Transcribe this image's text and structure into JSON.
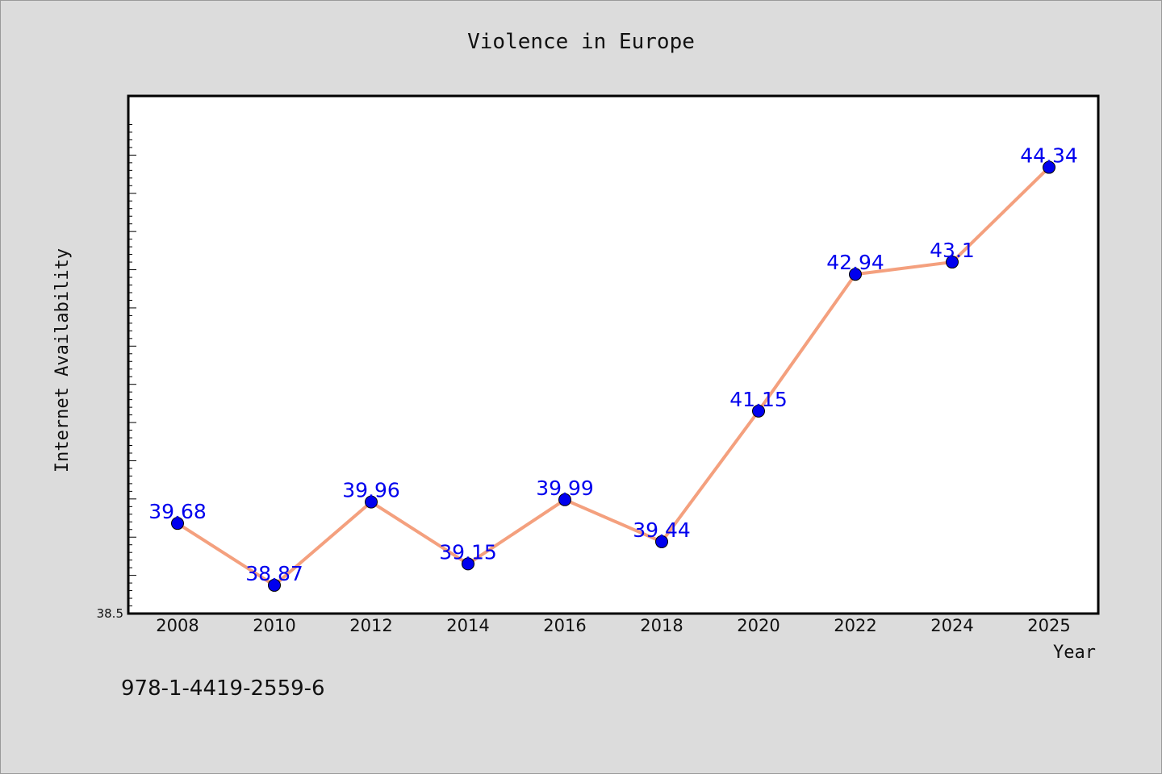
{
  "chart_data": {
    "type": "line",
    "title": "Violence in Europe",
    "xlabel": "Year",
    "ylabel": "Internet Availability",
    "categories": [
      "2008",
      "2010",
      "2012",
      "2014",
      "2016",
      "2018",
      "2020",
      "2022",
      "2024",
      "2025"
    ],
    "series": [
      {
        "values": [
          39.68,
          38.87,
          39.96,
          39.15,
          39.99,
          39.44,
          41.15,
          42.94,
          43.1,
          44.34
        ],
        "labels": [
          "39.68",
          "38.87",
          "39.96",
          "39.15",
          "39.99",
          "39.44",
          "41.15",
          "42.94",
          "43.1",
          "44.34"
        ]
      }
    ],
    "ylim": [
      38.5,
      45.0
    ],
    "ytick_labels": [
      "38.5"
    ],
    "grid": false,
    "legend": "none"
  },
  "footnote": "978-1-4419-2559-6",
  "colors": {
    "background": "#dcdcdc",
    "plot_background": "#ffffff",
    "line": "#f4a07e",
    "marker": "#0000ee",
    "data_label": "#0000ee"
  }
}
